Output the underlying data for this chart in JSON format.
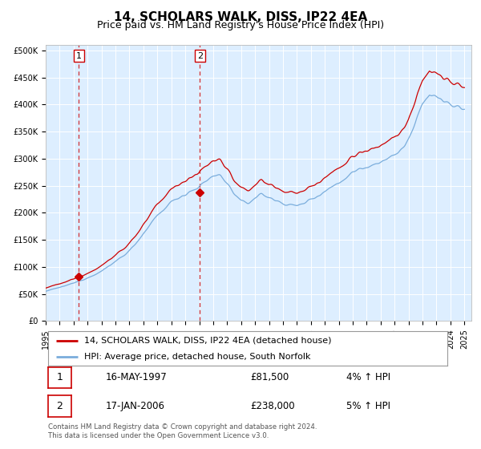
{
  "title": "14, SCHOLARS WALK, DISS, IP22 4EA",
  "subtitle": "Price paid vs. HM Land Registry's House Price Index (HPI)",
  "yticks": [
    0,
    50000,
    100000,
    150000,
    200000,
    250000,
    300000,
    350000,
    400000,
    450000,
    500000
  ],
  "ytick_labels": [
    "£0",
    "£50K",
    "£100K",
    "£150K",
    "£200K",
    "£250K",
    "£300K",
    "£350K",
    "£400K",
    "£450K",
    "£500K"
  ],
  "ylim": [
    0,
    510000
  ],
  "xlim_start": 1995.0,
  "xlim_end": 2025.5,
  "xticks": [
    1995,
    1996,
    1997,
    1998,
    1999,
    2000,
    2001,
    2002,
    2003,
    2004,
    2005,
    2006,
    2007,
    2008,
    2009,
    2010,
    2011,
    2012,
    2013,
    2014,
    2015,
    2016,
    2017,
    2018,
    2019,
    2020,
    2021,
    2022,
    2023,
    2024,
    2025
  ],
  "sale1_x": 1997.37,
  "sale1_y": 81500,
  "sale1_label": "1",
  "sale2_x": 2006.04,
  "sale2_y": 238000,
  "sale2_label": "2",
  "hpi_color": "#7aaddc",
  "sale_color": "#cc0000",
  "dot_color": "#cc0000",
  "marker_box_color": "#cc0000",
  "dashed_line_color": "#cc0000",
  "bg_color": "#ddeeff",
  "grid_color": "#ffffff",
  "legend_label_red": "14, SCHOLARS WALK, DISS, IP22 4EA (detached house)",
  "legend_label_blue": "HPI: Average price, detached house, South Norfolk",
  "annotation1_date": "16-MAY-1997",
  "annotation1_price": "£81,500",
  "annotation1_hpi": "4% ↑ HPI",
  "annotation2_date": "17-JAN-2006",
  "annotation2_price": "£238,000",
  "annotation2_hpi": "5% ↑ HPI",
  "footnote": "Contains HM Land Registry data © Crown copyright and database right 2024.\nThis data is licensed under the Open Government Licence v3.0.",
  "title_fontsize": 11,
  "subtitle_fontsize": 9,
  "tick_fontsize": 7
}
